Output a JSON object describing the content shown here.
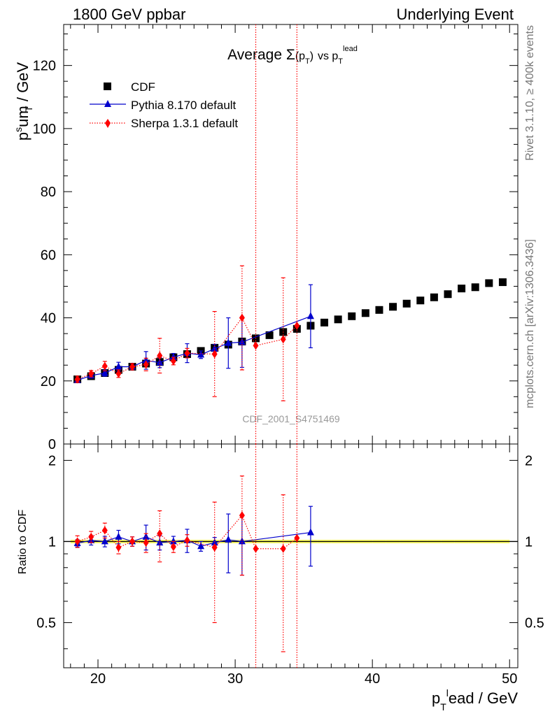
{
  "header": {
    "left": "1800 GeV ppbar",
    "right": "Underlying Event"
  },
  "side_labels": {
    "rivet": "Rivet 3.1.10, ≥ 400k events",
    "mcplots": "mcplots.cern.ch [arXiv:1306.3436]"
  },
  "watermark": "CDF_2001_S4751469",
  "chart_data": {
    "type": "scatter",
    "title": "Average Σ(p_T) vs p_T^lead",
    "xlabel": "p_T^lead / GeV",
    "ylabel": "p_T^sum / GeV",
    "ratio_ylabel": "Ratio to CDF",
    "xlim": [
      17.5,
      50.6
    ],
    "ylim": [
      0,
      133
    ],
    "ratio_ylim": [
      0.34,
      2.3
    ],
    "ratio_log_scale": true,
    "x_ticks": [
      20,
      30,
      40,
      50
    ],
    "y_ticks": [
      0,
      20,
      40,
      60,
      80,
      100,
      120
    ],
    "ratio_ticks": [
      0.5,
      1,
      2
    ],
    "legend_placement": "top-left",
    "series": [
      {
        "name": "CDF",
        "color": "#000000",
        "marker": "square",
        "x": [
          18.5,
          19.5,
          20.5,
          21.5,
          22.5,
          23.5,
          24.5,
          25.5,
          26.5,
          27.5,
          28.5,
          29.5,
          30.5,
          31.5,
          32.5,
          33.5,
          34.5,
          35.5,
          36.5,
          37.5,
          38.5,
          39.5,
          40.5,
          41.5,
          42.5,
          43.5,
          44.5,
          45.5,
          46.5,
          47.5,
          48.5,
          49.5
        ],
        "y": [
          20.5,
          21.5,
          22.5,
          23.5,
          24.5,
          25.5,
          26.0,
          27.5,
          28.5,
          29.5,
          30.5,
          31.5,
          32.5,
          33.5,
          34.5,
          35.5,
          36.5,
          37.5,
          38.5,
          39.5,
          40.5,
          41.5,
          42.5,
          43.5,
          44.5,
          45.5,
          46.5,
          47.5,
          49.3,
          49.7,
          51.0,
          51.3
        ]
      },
      {
        "name": "Pythia 8.170 default",
        "color": "#0000cc",
        "marker": "triangle",
        "line": "solid",
        "x": [
          18.5,
          19.5,
          20.5,
          21.5,
          22.5,
          23.5,
          24.5,
          25.5,
          26.5,
          27.5,
          28.5,
          29.5,
          30.5,
          35.5
        ],
        "y": [
          20.2,
          21.7,
          22.5,
          24.5,
          24.5,
          26.5,
          25.8,
          27.5,
          28.8,
          28.3,
          30.2,
          32.0,
          32.3,
          40.5
        ],
        "yerr": [
          0.6,
          0.8,
          1.0,
          1.4,
          1.0,
          2.8,
          1.6,
          1.2,
          3.0,
          1.2,
          1.4,
          8.0,
          8.0,
          10.0
        ],
        "ratio": [
          0.985,
          1.01,
          1.0,
          1.04,
          1.0,
          1.04,
          0.99,
          1.0,
          1.01,
          0.96,
          0.99,
          1.015,
          1.0,
          1.08
        ],
        "ratio_err": [
          0.03,
          0.04,
          0.045,
          0.06,
          0.04,
          0.11,
          0.06,
          0.045,
          0.1,
          0.04,
          0.045,
          0.25,
          0.25,
          0.27
        ]
      },
      {
        "name": "Sherpa 1.3.1 default",
        "color": "#ff0000",
        "marker": "diamond",
        "line": "dotted",
        "x": [
          18.5,
          19.5,
          20.5,
          21.5,
          22.5,
          23.5,
          24.5,
          25.5,
          26.5,
          28.5,
          30.5,
          31.5,
          33.5,
          34.5
        ],
        "y": [
          20.5,
          22.3,
          24.7,
          22.3,
          24.5,
          25.2,
          28.0,
          26.3,
          28.8,
          28.5,
          40.0,
          31.2,
          33.2,
          37.5
        ],
        "yerr": [
          1.0,
          1.0,
          1.5,
          1.2,
          1.0,
          2.0,
          5.5,
          1.2,
          1.5,
          13.5,
          16.5,
          140,
          19.5,
          140
        ],
        "ratio": [
          1.0,
          1.04,
          1.1,
          0.95,
          1.0,
          0.99,
          1.07,
          0.955,
          1.01,
          0.95,
          1.25,
          0.94,
          0.94,
          1.03
        ],
        "ratio_err": [
          0.05,
          0.05,
          0.07,
          0.05,
          0.04,
          0.08,
          0.23,
          0.045,
          0.05,
          0.45,
          0.5,
          2.0,
          0.55,
          2.0
        ]
      }
    ]
  }
}
